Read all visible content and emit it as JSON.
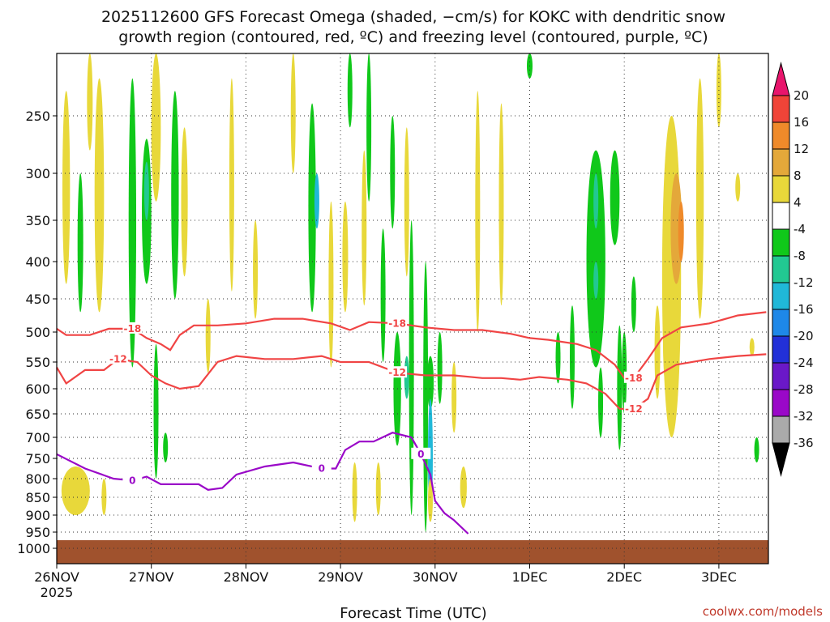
{
  "chart_data": {
    "type": "heatmap",
    "title_line1": "2025112600 GFS Forecast Omega (shaded, −cm/s) for KOKC with dendritic snow",
    "title_line2": "growth region (contoured, red, ºC) and freezing level (contoured, purple, ºC)",
    "xlabel": "Forecast Time (UTC)",
    "x_ticks": [
      "26NOV",
      "27NOV",
      "28NOV",
      "29NOV",
      "30NOV",
      "1DEC",
      "2DEC",
      "3DEC"
    ],
    "x_tick_year": "2025",
    "x_range_days": [
      0,
      7.5
    ],
    "y_ticks": [
      "250",
      "300",
      "350",
      "400",
      "450",
      "500",
      "550",
      "600",
      "650",
      "700",
      "750",
      "800",
      "850",
      "900",
      "950",
      "1000"
    ],
    "y_range_hpa": [
      200,
      1010
    ],
    "colorbar_ticks": [
      "20",
      "16",
      "12",
      "8",
      "4",
      "-4",
      "-8",
      "-12",
      "-16",
      "-20",
      "-24",
      "-28",
      "-32",
      "-36"
    ],
    "colorbar_bins": [
      {
        "range": "> 20",
        "color": "#e8156c"
      },
      {
        "range": "16 to 20",
        "color": "#f04438"
      },
      {
        "range": "12 to 16",
        "color": "#ef8a2a"
      },
      {
        "range": "8 to 12",
        "color": "#e4a83a"
      },
      {
        "range": "4 to 8",
        "color": "#e8d83a"
      },
      {
        "range": "-4 to 4",
        "color": "#ffffff"
      },
      {
        "range": "-8 to -4",
        "color": "#10c81a"
      },
      {
        "range": "-12 to -8",
        "color": "#22c892"
      },
      {
        "range": "-16 to -12",
        "color": "#20b8d8"
      },
      {
        "range": "-20 to -16",
        "color": "#1e88e8"
      },
      {
        "range": "-24 to -20",
        "color": "#2230d8"
      },
      {
        "range": "-28 to -24",
        "color": "#6a18c8"
      },
      {
        "range": "-32 to -28",
        "color": "#9a08c8"
      },
      {
        "range": "-36 to -32",
        "color": "#aaaaaa"
      },
      {
        "range": "< -36",
        "color": "#000000"
      }
    ],
    "contours": [
      {
        "name": "-18 C isotherm",
        "label": "-18",
        "color": "#f04444",
        "points": [
          [
            0,
            495
          ],
          [
            0.1,
            505
          ],
          [
            0.35,
            505
          ],
          [
            0.55,
            495
          ],
          [
            0.8,
            495
          ],
          [
            0.95,
            510
          ],
          [
            1.1,
            520
          ],
          [
            1.2,
            530
          ],
          [
            1.3,
            505
          ],
          [
            1.45,
            490
          ],
          [
            1.7,
            490
          ],
          [
            2.0,
            487
          ],
          [
            2.3,
            480
          ],
          [
            2.6,
            480
          ],
          [
            2.9,
            487
          ],
          [
            3.1,
            497
          ],
          [
            3.3,
            485
          ],
          [
            3.6,
            487
          ],
          [
            3.9,
            493
          ],
          [
            4.2,
            497
          ],
          [
            4.5,
            497
          ],
          [
            4.8,
            503
          ],
          [
            5.0,
            510
          ],
          [
            5.2,
            513
          ],
          [
            5.5,
            520
          ],
          [
            5.7,
            530
          ],
          [
            5.9,
            555
          ],
          [
            6.0,
            580
          ],
          [
            6.1,
            580
          ],
          [
            6.25,
            545
          ],
          [
            6.4,
            510
          ],
          [
            6.6,
            493
          ],
          [
            6.9,
            487
          ],
          [
            7.2,
            475
          ],
          [
            7.5,
            470
          ]
        ]
      },
      {
        "name": "-12 C isotherm",
        "label": "-12",
        "color": "#f04444",
        "points": [
          [
            0,
            560
          ],
          [
            0.1,
            590
          ],
          [
            0.3,
            565
          ],
          [
            0.5,
            565
          ],
          [
            0.65,
            545
          ],
          [
            0.85,
            550
          ],
          [
            1.0,
            575
          ],
          [
            1.15,
            590
          ],
          [
            1.3,
            600
          ],
          [
            1.5,
            595
          ],
          [
            1.7,
            550
          ],
          [
            1.9,
            540
          ],
          [
            2.2,
            545
          ],
          [
            2.5,
            545
          ],
          [
            2.8,
            540
          ],
          [
            3.0,
            550
          ],
          [
            3.3,
            550
          ],
          [
            3.6,
            570
          ],
          [
            3.9,
            575
          ],
          [
            4.2,
            575
          ],
          [
            4.5,
            580
          ],
          [
            4.7,
            580
          ],
          [
            4.9,
            583
          ],
          [
            5.1,
            578
          ],
          [
            5.4,
            583
          ],
          [
            5.6,
            590
          ],
          [
            5.8,
            610
          ],
          [
            5.95,
            640
          ],
          [
            6.1,
            640
          ],
          [
            6.25,
            620
          ],
          [
            6.35,
            575
          ],
          [
            6.55,
            555
          ],
          [
            6.9,
            545
          ],
          [
            7.2,
            540
          ],
          [
            7.5,
            537
          ]
        ]
      },
      {
        "name": "freezing level (0 C)",
        "label": "0",
        "color": "#9a08c8",
        "points": [
          [
            0,
            740
          ],
          [
            0.3,
            775
          ],
          [
            0.6,
            800
          ],
          [
            0.8,
            805
          ],
          [
            0.95,
            795
          ],
          [
            1.1,
            815
          ],
          [
            1.3,
            815
          ],
          [
            1.5,
            815
          ],
          [
            1.6,
            830
          ],
          [
            1.75,
            825
          ],
          [
            1.9,
            790
          ],
          [
            2.2,
            770
          ],
          [
            2.5,
            760
          ],
          [
            2.8,
            775
          ],
          [
            2.95,
            775
          ],
          [
            3.05,
            730
          ],
          [
            3.2,
            710
          ],
          [
            3.35,
            710
          ],
          [
            3.55,
            690
          ],
          [
            3.75,
            700
          ],
          [
            3.85,
            740
          ],
          [
            3.95,
            790
          ],
          [
            4.0,
            860
          ],
          [
            4.1,
            895
          ],
          [
            4.2,
            915
          ],
          [
            4.35,
            955
          ]
        ]
      }
    ],
    "notes_on_shading": "Bands of -4 to -12 (green) upward motion through the week and 4 to 16 (yellow/orange) subsidence, strongest orange near 2 to 3 DEC at 300-450 hPa; surface (brown) below about 975 hPa"
  },
  "credit": "coolwx.com/models"
}
